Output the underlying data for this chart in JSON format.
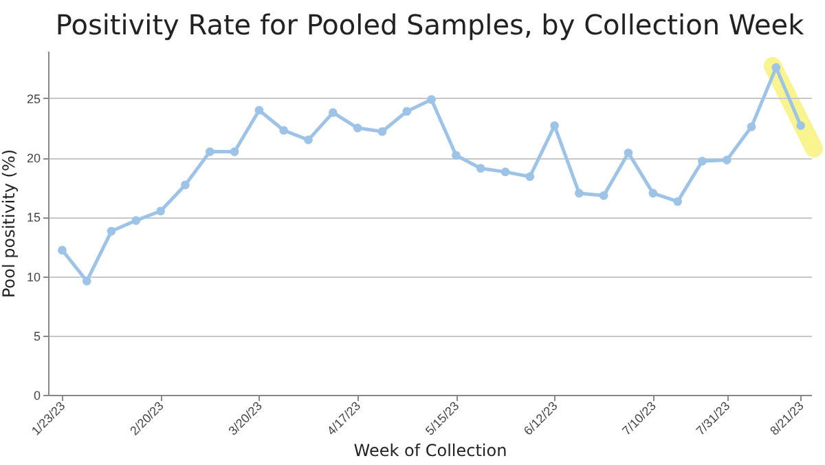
{
  "chart_data": {
    "type": "line",
    "title": "Positivity Rate for Pooled Samples, by Collection Week",
    "xlabel": "Week of Collection",
    "ylabel": "Pool positivity (%)",
    "x": [
      "2023-01-23",
      "2023-01-30",
      "2023-02-06",
      "2023-02-13",
      "2023-02-20",
      "2023-02-27",
      "2023-03-06",
      "2023-03-13",
      "2023-03-20",
      "2023-03-27",
      "2023-04-03",
      "2023-04-10",
      "2023-04-17",
      "2023-04-24",
      "2023-05-01",
      "2023-05-08",
      "2023-05-15",
      "2023-05-22",
      "2023-05-29",
      "2023-06-05",
      "2023-06-12",
      "2023-06-19",
      "2023-06-26",
      "2023-07-03",
      "2023-07-10",
      "2023-07-17",
      "2023-07-24",
      "2023-07-31",
      "2023-08-07",
      "2023-08-14",
      "2023-08-21"
    ],
    "series": [
      {
        "color": "#9dc3e6",
        "values": [
          12.2,
          9.6,
          13.8,
          14.7,
          15.5,
          17.7,
          20.5,
          20.5,
          24.0,
          22.3,
          21.5,
          23.8,
          22.5,
          22.2,
          23.9,
          24.9,
          20.2,
          19.1,
          18.8,
          18.4,
          22.7,
          17.0,
          16.8,
          20.4,
          17.0,
          16.3,
          19.7,
          19.8,
          22.6,
          27.6,
          22.7
        ]
      }
    ],
    "xlim": [
      "2023-01-19",
      "2023-08-24"
    ],
    "xticks": [
      {
        "value": "2023-01-23",
        "label": "1/23/23"
      },
      {
        "value": "2023-02-20",
        "label": "2/20/23"
      },
      {
        "value": "2023-03-20",
        "label": "3/20/23"
      },
      {
        "value": "2023-04-17",
        "label": "4/17/23"
      },
      {
        "value": "2023-05-15",
        "label": "5/15/23"
      },
      {
        "value": "2023-06-12",
        "label": "6/12/23"
      },
      {
        "value": "2023-07-10",
        "label": "7/10/23"
      },
      {
        "value": "2023-07-31",
        "label": "7/31/23"
      },
      {
        "value": "2023-08-21",
        "label": "8/21/23"
      }
    ],
    "ylim": [
      0,
      29
    ],
    "yticks": [
      0,
      5,
      10,
      15,
      20,
      25
    ],
    "grid": "y",
    "marker": "circle",
    "line_style": "solid",
    "legend": false
  }
}
